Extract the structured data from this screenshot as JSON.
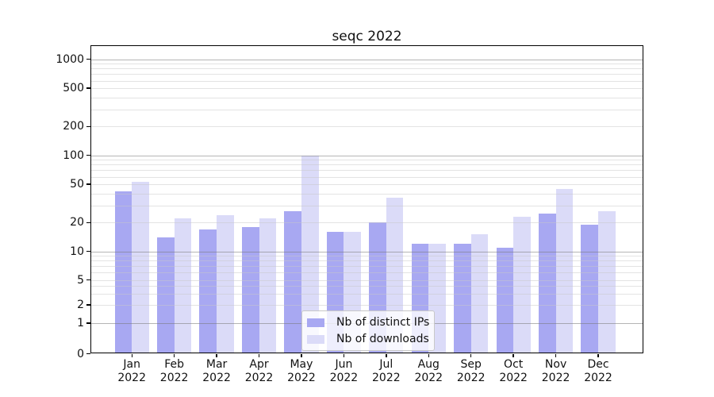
{
  "title": "seqc 2022",
  "legend": {
    "items": [
      {
        "label": "Nb of distinct IPs",
        "icon": "legend-swatch",
        "color": "#a8a8f2"
      },
      {
        "label": "Nb of downloads",
        "icon": "legend-swatch",
        "color": "#dbdbf8"
      }
    ]
  },
  "chart_data": {
    "type": "bar",
    "title": "seqc 2022",
    "categories": [
      "Jan 2022",
      "Feb 2022",
      "Mar 2022",
      "Apr 2022",
      "May 2022",
      "Jun 2022",
      "Jul 2022",
      "Aug 2022",
      "Sep 2022",
      "Oct 2022",
      "Nov 2022",
      "Dec 2022"
    ],
    "series": [
      {
        "name": "Nb of distinct IPs",
        "color": "#a8a8f2",
        "values": [
          42,
          14,
          17,
          18,
          26,
          16,
          20,
          12,
          12,
          11,
          25,
          19
        ]
      },
      {
        "name": "Nb of downloads",
        "color": "#dbdbf8",
        "values": [
          53,
          22,
          24,
          22,
          100,
          16,
          36,
          12,
          15,
          23,
          45,
          26
        ]
      }
    ],
    "xlabel": "",
    "ylabel": "",
    "yscale": "log-like (0,1,2,5,10,20,50,100,200,500,1000)",
    "ylim": [
      0,
      1400
    ],
    "y_ticks": [
      1000,
      500,
      200,
      100,
      50,
      20,
      10,
      5,
      2,
      1,
      0
    ],
    "y_minor_ticks": [
      3,
      4,
      6,
      7,
      8,
      9,
      30,
      40,
      60,
      70,
      80,
      90,
      300,
      400,
      600,
      700,
      800,
      900
    ],
    "grid": true,
    "legend_position": "lower center"
  }
}
